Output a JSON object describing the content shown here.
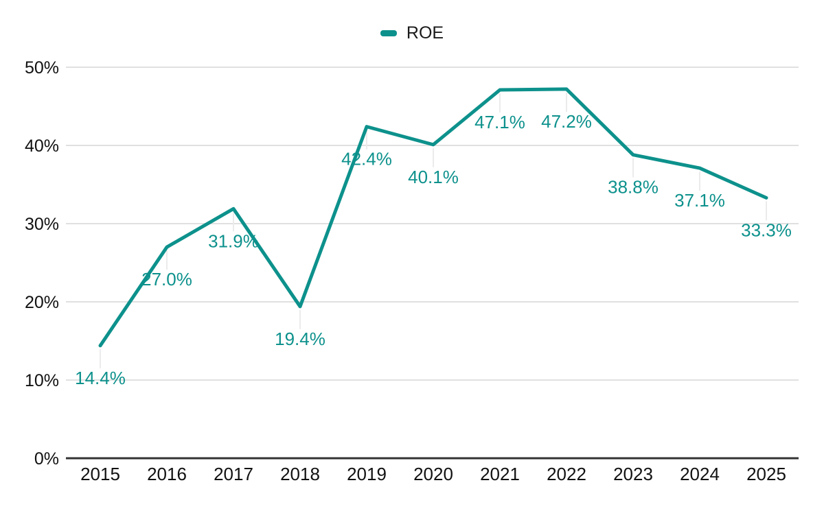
{
  "chart_data": {
    "type": "line",
    "title": "",
    "categories": [
      "2015",
      "2016",
      "2017",
      "2018",
      "2019",
      "2020",
      "2021",
      "2022",
      "2023",
      "2024",
      "2025"
    ],
    "series": [
      {
        "name": "ROE",
        "values": [
          14.4,
          27.0,
          31.9,
          19.4,
          42.4,
          40.1,
          47.1,
          47.2,
          38.8,
          37.1,
          33.3
        ],
        "data_labels": [
          "14.4%",
          "27.0%",
          "31.9%",
          "19.4%",
          "42.4%",
          "40.1%",
          "47.1%",
          "47.2%",
          "38.8%",
          "37.1%",
          "33.3%"
        ],
        "color": "#0d918c"
      }
    ],
    "xlabel": "",
    "ylabel": "",
    "ylim": [
      0,
      50
    ],
    "y_ticks": [
      {
        "value": 0,
        "label": "0%"
      },
      {
        "value": 10,
        "label": "10%"
      },
      {
        "value": 20,
        "label": "20%"
      },
      {
        "value": 30,
        "label": "30%"
      },
      {
        "value": 40,
        "label": "40%"
      },
      {
        "value": 50,
        "label": "50%"
      }
    ],
    "grid": true,
    "legend_position": "top-center"
  },
  "colors": {
    "accent": "#0d918c",
    "gridline": "#d6d6d6",
    "axis_line": "#333333",
    "axis_text": "#111111",
    "label_connector": "#ebebeb",
    "background": "#ffffff"
  }
}
